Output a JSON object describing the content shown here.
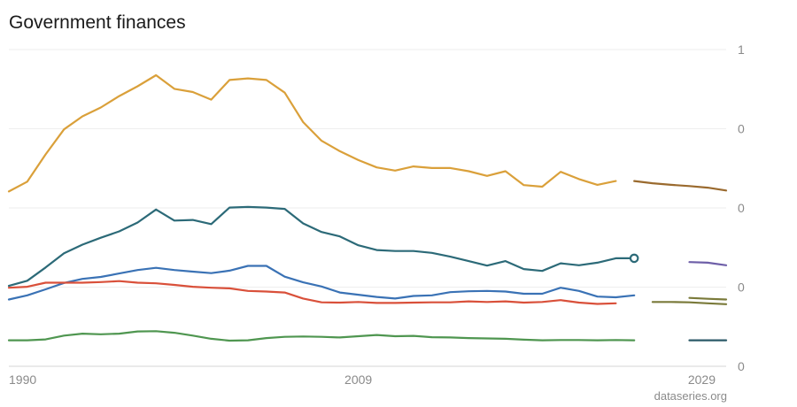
{
  "title": "Government finances",
  "source": "dataseries.org",
  "chart_data": {
    "type": "line",
    "title": "Government finances",
    "xlabel": "",
    "ylabel": "",
    "xlim": [
      1990,
      2029
    ],
    "ylim": [
      0,
      1
    ],
    "x_ticks": [
      "1990",
      "2009",
      "2029"
    ],
    "y_ticks": [
      "0",
      "0",
      "0",
      "0",
      "1"
    ],
    "grid": true,
    "legend": "none",
    "x": [
      1990,
      1991,
      1992,
      1993,
      1994,
      1995,
      1996,
      1997,
      1998,
      1999,
      2000,
      2001,
      2002,
      2003,
      2004,
      2005,
      2006,
      2007,
      2008,
      2009,
      2010,
      2011,
      2012,
      2013,
      2014,
      2015,
      2016,
      2017,
      2018,
      2019,
      2020,
      2021,
      2022,
      2023,
      2024
    ],
    "series": [
      {
        "color": "#daa03a",
        "values": [
          0.552,
          0.583,
          0.669,
          0.748,
          0.789,
          0.817,
          0.853,
          0.884,
          0.919,
          0.876,
          0.866,
          0.842,
          0.904,
          0.909,
          0.904,
          0.864,
          0.771,
          0.712,
          0.679,
          0.651,
          0.628,
          0.618,
          0.631,
          0.626,
          0.626,
          0.616,
          0.601,
          0.616,
          0.572,
          0.567,
          0.614,
          0.591,
          0.573,
          0.585,
          null
        ],
        "projection": {
          "color": "#9a6a2e",
          "x": [
            2024,
            2025,
            2026,
            2027,
            2028,
            2029
          ],
          "values": [
            0.585,
            0.578,
            0.573,
            0.569,
            0.564,
            0.555
          ]
        }
      },
      {
        "color": "#2c6a78",
        "values": [
          0.254,
          0.27,
          0.312,
          0.357,
          0.384,
          0.406,
          0.426,
          0.454,
          0.495,
          0.46,
          0.462,
          0.449,
          0.501,
          0.503,
          0.501,
          0.497,
          0.451,
          0.424,
          0.41,
          0.382,
          0.367,
          0.364,
          0.364,
          0.358,
          0.346,
          0.332,
          0.318,
          0.332,
          0.307,
          0.301,
          0.325,
          0.319,
          0.327,
          0.341,
          0.341
        ],
        "projection": {
          "color": "#6e5fa8",
          "x": [
            2027,
            2028,
            2029
          ],
          "values": [
            0.329,
            0.327,
            0.319
          ]
        }
      },
      {
        "color": "#3a72b5",
        "values": [
          0.211,
          0.224,
          0.243,
          0.263,
          0.276,
          0.282,
          0.293,
          0.304,
          0.311,
          0.304,
          0.299,
          0.294,
          0.302,
          0.317,
          0.317,
          0.283,
          0.265,
          0.252,
          0.233,
          0.226,
          0.219,
          0.214,
          0.222,
          0.224,
          0.234,
          0.237,
          0.238,
          0.236,
          0.229,
          0.229,
          0.248,
          0.238,
          0.22,
          0.218,
          0.224
        ],
        "projection": {
          "color": "#7a7a3a",
          "x": [
            2027,
            2028,
            2029
          ],
          "values": [
            0.216,
            0.213,
            0.211
          ]
        }
      },
      {
        "color": "#d9503a",
        "values": [
          0.248,
          0.251,
          0.264,
          0.264,
          0.264,
          0.266,
          0.269,
          0.264,
          0.262,
          0.257,
          0.251,
          0.248,
          0.246,
          0.238,
          0.236,
          0.233,
          0.214,
          0.202,
          0.201,
          0.203,
          0.2,
          0.2,
          0.201,
          0.202,
          0.202,
          0.205,
          0.203,
          0.205,
          0.201,
          0.203,
          0.209,
          0.201,
          0.197,
          0.199,
          null
        ],
        "projection": {
          "color": "#7a7a3a",
          "x": [
            2025,
            2026,
            2027,
            2028,
            2029
          ],
          "values": [
            0.203,
            0.203,
            0.202,
            0.199,
            0.196
          ]
        }
      },
      {
        "color": "#4f9650",
        "values": [
          0.082,
          0.082,
          0.085,
          0.097,
          0.103,
          0.101,
          0.103,
          0.11,
          0.111,
          0.106,
          0.097,
          0.087,
          0.081,
          0.082,
          0.089,
          0.093,
          0.094,
          0.093,
          0.091,
          0.095,
          0.099,
          0.095,
          0.096,
          0.092,
          0.091,
          0.089,
          0.088,
          0.087,
          0.084,
          0.082,
          0.083,
          0.083,
          0.082,
          0.083,
          0.082
        ],
        "projection": {
          "color": "#2c5a68",
          "x": [
            2027,
            2028,
            2029
          ],
          "values": [
            0.082,
            0.082,
            0.082
          ]
        }
      }
    ]
  }
}
